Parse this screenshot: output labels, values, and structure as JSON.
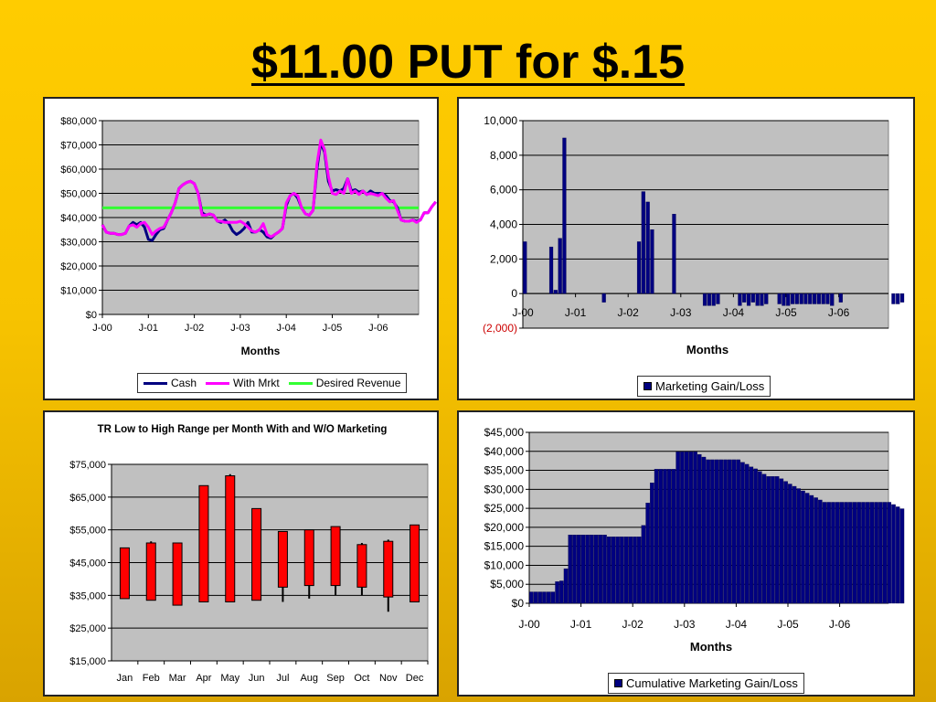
{
  "slide": {
    "title": "$11.00 PUT for $.15"
  },
  "colors": {
    "background": "#ffcc00",
    "plot_bg": "#c0c0c0",
    "navy": "#000080",
    "magenta": "#ff00ff",
    "green": "#33ff33",
    "red": "#ff0000"
  },
  "chart_data": [
    {
      "id": "cash_vs_mrkt",
      "type": "line",
      "title": "",
      "xlabel": "Months",
      "ylabel": "",
      "ylim": [
        0,
        80000
      ],
      "yticks": [
        "$0",
        "$10,000",
        "$20,000",
        "$30,000",
        "$40,000",
        "$50,000",
        "$60,000",
        "$70,000",
        "$80,000"
      ],
      "xticks": [
        "J-00",
        "J-01",
        "J-02",
        "J-03",
        "J-04",
        "J-05",
        "J-06"
      ],
      "grid": true,
      "legend_position": "bottom",
      "series": [
        {
          "name": "Cash",
          "color": "#000080",
          "values": [
            37000,
            34000,
            33500,
            33500,
            33000,
            33000,
            33500,
            36500,
            38000,
            37000,
            38000,
            36000,
            31000,
            30500,
            33000,
            35000,
            35500,
            39000,
            42000,
            46000,
            52000,
            53500,
            54500,
            55000,
            54000,
            50000,
            42000,
            41000,
            41500,
            41000,
            38500,
            38000,
            39000,
            37500,
            34500,
            33000,
            34000,
            35500,
            38000,
            34000,
            34000,
            35000,
            34000,
            32000,
            31500,
            33000,
            34000,
            35500,
            45000,
            49000,
            50000,
            48000,
            44000,
            41500,
            41000,
            43000,
            60000,
            71000,
            67000,
            55000,
            51000,
            51500,
            51000,
            52000,
            56000,
            51000,
            51500,
            50500,
            51000,
            49500,
            51000,
            50000,
            50000,
            50000,
            49000,
            47000,
            46500,
            44000,
            39000,
            38500,
            38500,
            39000,
            38500,
            39000,
            42000,
            42000,
            44500,
            46500
          ]
        },
        {
          "name": "With Mrkt",
          "color": "#ff00ff",
          "values": [
            37000,
            34000,
            33500,
            33500,
            33000,
            33000,
            33500,
            36500,
            37000,
            36000,
            37500,
            38000,
            36000,
            33000,
            34500,
            35500,
            36000,
            39000,
            42000,
            46000,
            52000,
            53500,
            54500,
            55000,
            54000,
            50000,
            41000,
            41000,
            41500,
            41000,
            38500,
            38500,
            38000,
            38000,
            38000,
            38000,
            38500,
            37500,
            36000,
            34500,
            34000,
            35000,
            37500,
            33000,
            32000,
            33000,
            34000,
            35500,
            46000,
            49000,
            50000,
            49000,
            44000,
            41500,
            41000,
            43000,
            62000,
            72000,
            68000,
            57000,
            50000,
            49500,
            51000,
            50000,
            56000,
            50000,
            51000,
            49500,
            51000,
            49500,
            50000,
            49500,
            49000,
            50000,
            48000,
            46500,
            47000,
            43000,
            39000,
            38500,
            38500,
            39000,
            38000,
            39000,
            42000,
            42000,
            44500,
            46500
          ]
        },
        {
          "name": "Desired Revenue",
          "color": "#33ff33",
          "values": [
            44000,
            44000
          ]
        }
      ]
    },
    {
      "id": "marketing_gain_loss",
      "type": "bar",
      "title": "",
      "xlabel": "Months",
      "ylabel": "",
      "ylim": [
        -2000,
        10000
      ],
      "yticks": [
        "(2,000)",
        "0",
        "2,000",
        "4,000",
        "6,000",
        "8,000",
        "10,000"
      ],
      "xticks": [
        "J-00",
        "J-01",
        "J-02",
        "J-03",
        "J-04",
        "J-05",
        "J-06"
      ],
      "grid": true,
      "legend_position": "bottom",
      "series": [
        {
          "name": "Marketing Gain/Loss",
          "color": "#000080",
          "values": [
            3000,
            0,
            0,
            0,
            0,
            0,
            2700,
            200,
            3200,
            9000,
            0,
            0,
            0,
            0,
            0,
            0,
            0,
            0,
            -500,
            0,
            0,
            0,
            0,
            0,
            0,
            0,
            3000,
            5900,
            5300,
            3700,
            0,
            0,
            0,
            0,
            4600,
            0,
            0,
            0,
            0,
            0,
            0,
            -700,
            -700,
            -700,
            -600,
            0,
            0,
            0,
            0,
            -700,
            -500,
            -700,
            -500,
            -700,
            -700,
            -600,
            0,
            0,
            -600,
            -700,
            -700,
            -600,
            -600,
            -600,
            -600,
            -600,
            -600,
            -600,
            -600,
            -600,
            -700,
            0,
            -500,
            0,
            0,
            0,
            0,
            0,
            0,
            0,
            0,
            0,
            0,
            0,
            -600,
            -600,
            -500
          ]
        }
      ]
    },
    {
      "id": "tr_low_high",
      "type": "bar",
      "title": "TR Low to High Range per Month With and W/O Marketing",
      "xlabel": "",
      "ylabel": "",
      "ylim": [
        15000,
        75000
      ],
      "yticks": [
        "$15,000",
        "$25,000",
        "$35,000",
        "$45,000",
        "$55,000",
        "$65,000",
        "$75,000"
      ],
      "grid": true,
      "categories": [
        "Jan",
        "Feb",
        "Mar",
        "Apr",
        "May",
        "Jun",
        "Jul",
        "Aug",
        "Sep",
        "Oct",
        "Nov",
        "Dec"
      ],
      "series": [
        {
          "name": "Low",
          "values": [
            34000,
            33500,
            32000,
            33000,
            33000,
            33500,
            37500,
            38000,
            38000,
            37500,
            34500,
            33000
          ]
        },
        {
          "name": "High",
          "values": [
            49500,
            51000,
            51000,
            68500,
            71500,
            61500,
            54500,
            55000,
            56000,
            50500,
            51500,
            56500
          ]
        },
        {
          "name": "Whisker Low",
          "values": [
            34000,
            33500,
            32000,
            33000,
            33000,
            33500,
            33000,
            34000,
            35000,
            35000,
            30000,
            33000
          ]
        },
        {
          "name": "Whisker High",
          "values": [
            49500,
            51500,
            51000,
            68500,
            72000,
            61500,
            54500,
            55000,
            56000,
            51000,
            52000,
            56500
          ]
        }
      ],
      "bar_color": "#ff0000"
    },
    {
      "id": "cumulative_marketing",
      "type": "bar",
      "title": "",
      "xlabel": "Months",
      "ylabel": "",
      "ylim": [
        0,
        45000
      ],
      "yticks": [
        "$0",
        "$5,000",
        "$10,000",
        "$15,000",
        "$20,000",
        "$25,000",
        "$30,000",
        "$35,000",
        "$40,000",
        "$45,000"
      ],
      "xticks": [
        "J-00",
        "J-01",
        "J-02",
        "J-03",
        "J-04",
        "J-05",
        "J-06"
      ],
      "grid": true,
      "legend_position": "bottom",
      "series": [
        {
          "name": "Cumulative Marketing Gain/Loss",
          "color": "#000080",
          "values": [
            3000,
            3000,
            3000,
            3000,
            3000,
            3000,
            5700,
            5900,
            9100,
            18000,
            18000,
            18000,
            18000,
            18000,
            18000,
            18000,
            18000,
            18000,
            17500,
            17500,
            17500,
            17500,
            17500,
            17500,
            17500,
            17500,
            20500,
            26400,
            31700,
            35300,
            35300,
            35300,
            35300,
            35300,
            39900,
            39900,
            39900,
            39900,
            39900,
            39200,
            38500,
            37800,
            37800,
            37800,
            37800,
            37800,
            37800,
            37800,
            37800,
            37100,
            36600,
            35900,
            35400,
            34700,
            34000,
            33400,
            33400,
            33400,
            32800,
            32100,
            31400,
            30800,
            30200,
            29600,
            29000,
            28400,
            27800,
            27200,
            26600,
            26600,
            26600,
            26600,
            26600,
            26600,
            26600,
            26600,
            26600,
            26600,
            26600,
            26600,
            26600,
            26600,
            26600,
            26600,
            26000,
            25400,
            24900
          ]
        }
      ]
    }
  ]
}
